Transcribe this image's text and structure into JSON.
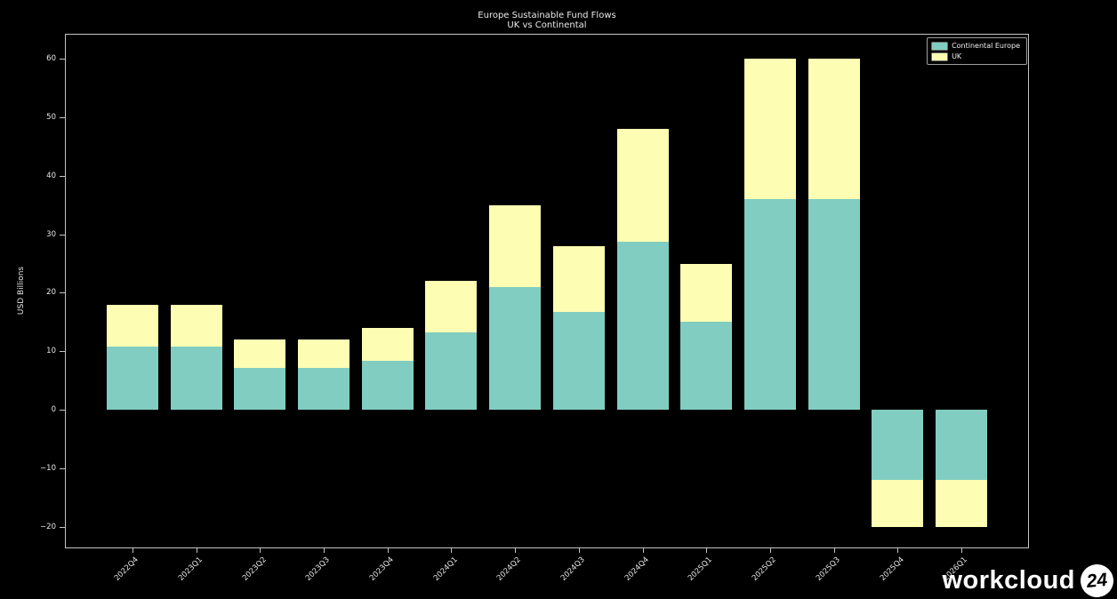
{
  "title": {
    "line1": "Europe Sustainable Fund Flows",
    "line2": "UK vs Continental"
  },
  "watermark": {
    "text": "workcloud",
    "badge": "24"
  },
  "colors": {
    "background": "#000000",
    "axis": "#c4c4c4",
    "text": "#e6e6e6",
    "continental": "#82cdc1",
    "uk": "#fdfdb4"
  },
  "chart_data": {
    "type": "bar",
    "stacked": true,
    "title": "Europe Sustainable Fund Flows — UK vs Continental",
    "ylabel": "USD Billions",
    "xlabel": "",
    "categories": [
      "2022Q4",
      "2023Q1",
      "2023Q2",
      "2023Q3",
      "2023Q4",
      "2024Q1",
      "2024Q2",
      "2024Q3",
      "2024Q4",
      "2025Q1",
      "2025Q2",
      "2025Q3",
      "2025Q4",
      "2026Q1"
    ],
    "series": [
      {
        "name": "Continental Europe",
        "color": "#82cdc1",
        "values": [
          10.8,
          10.8,
          7.2,
          7.2,
          8.4,
          13.2,
          21.0,
          16.8,
          28.8,
          15.0,
          36.0,
          36.0,
          -12.0,
          -12.0
        ]
      },
      {
        "name": "UK",
        "color": "#fdfdb4",
        "values": [
          7.2,
          7.2,
          4.8,
          4.8,
          5.6,
          8.8,
          14.0,
          11.2,
          19.2,
          10.0,
          24.0,
          24.0,
          -8.0,
          -8.0
        ]
      }
    ],
    "stack_totals": [
      18,
      18,
      12,
      12,
      14,
      22,
      35,
      28,
      48,
      25,
      60,
      60,
      -20,
      -20
    ],
    "yticks": [
      -20,
      -10,
      0,
      10,
      20,
      30,
      40,
      50,
      60
    ],
    "ylim": [
      -23.7,
      64.3
    ],
    "grid": false,
    "legend_position": "upper right"
  }
}
